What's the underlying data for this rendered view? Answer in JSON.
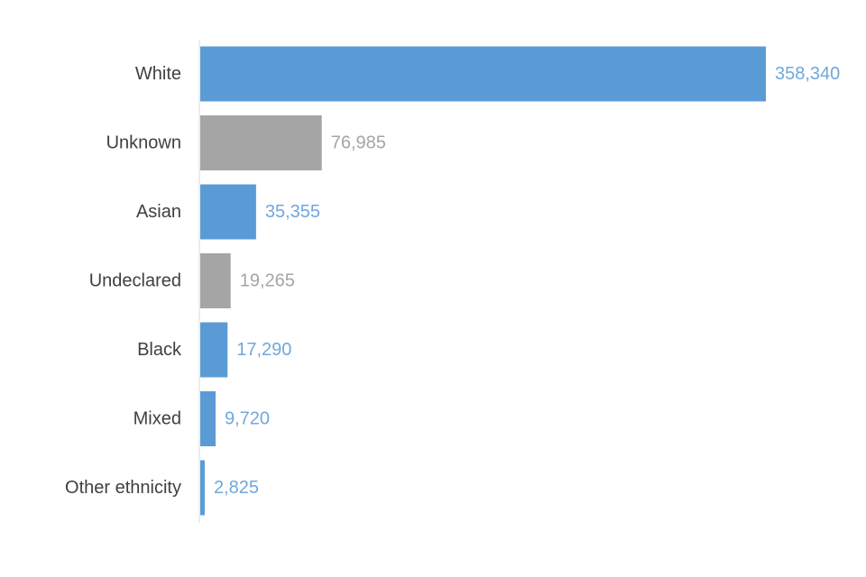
{
  "chart_data": {
    "type": "bar",
    "orientation": "horizontal",
    "categories": [
      "White",
      "Unknown",
      "Asian",
      "Undeclared",
      "Black",
      "Mixed",
      "Other ethnicity"
    ],
    "values": [
      358340,
      76985,
      35355,
      19265,
      17290,
      9720,
      2825
    ],
    "value_labels": [
      "358,340",
      "76,985",
      "35,355",
      "19,265",
      "17,290",
      "9,720",
      "2,825"
    ],
    "title": "",
    "xlabel": "",
    "ylabel": "",
    "grid": false,
    "legend": "none",
    "colors": {
      "White": "#5b9bd5",
      "Unknown": "#a5a5a5",
      "Asian": "#5b9bd5",
      "Undeclared": "#a5a5a5",
      "Black": "#5b9bd5",
      "Mixed": "#5b9bd5",
      "Other ethnicity": "#5b9bd5"
    },
    "label_colors": {
      "blue": "#6fa8dc",
      "grey": "#a5a5a5"
    },
    "axis_color": "#d9d9d9",
    "category_text_color": "#3f3f3f"
  }
}
